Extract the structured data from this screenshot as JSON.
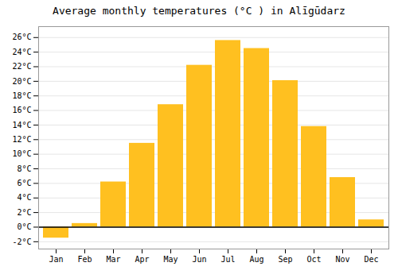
{
  "chart_data": {
    "type": "bar",
    "title": "Average monthly temperatures (°C ) in Alīgūdarz",
    "categories": [
      "Jan",
      "Feb",
      "Mar",
      "Apr",
      "May",
      "Jun",
      "Jul",
      "Aug",
      "Sep",
      "Oct",
      "Nov",
      "Dec"
    ],
    "values": [
      -1.5,
      0.5,
      6.2,
      11.5,
      16.8,
      22.2,
      25.6,
      24.5,
      20.1,
      13.8,
      6.8,
      1.0
    ],
    "color": "#FFC020",
    "ylim": [
      -3.0,
      27.5
    ],
    "yticks": [
      {
        "value": -2,
        "label": "-2°C"
      },
      {
        "value": 0,
        "label": "0°C"
      },
      {
        "value": 2,
        "label": "2°C"
      },
      {
        "value": 4,
        "label": "4°C"
      },
      {
        "value": 6,
        "label": "6°C"
      },
      {
        "value": 8,
        "label": "8°C"
      },
      {
        "value": 10,
        "label": "10°C"
      },
      {
        "value": 12,
        "label": "12°C"
      },
      {
        "value": 14,
        "label": "14°C"
      },
      {
        "value": 16,
        "label": "16°C"
      },
      {
        "value": 18,
        "label": "18°C"
      },
      {
        "value": 20,
        "label": "20°C"
      },
      {
        "value": 22,
        "label": "22°C"
      },
      {
        "value": 24,
        "label": "24°C"
      },
      {
        "value": 26,
        "label": "26°C"
      }
    ],
    "grid": true
  }
}
